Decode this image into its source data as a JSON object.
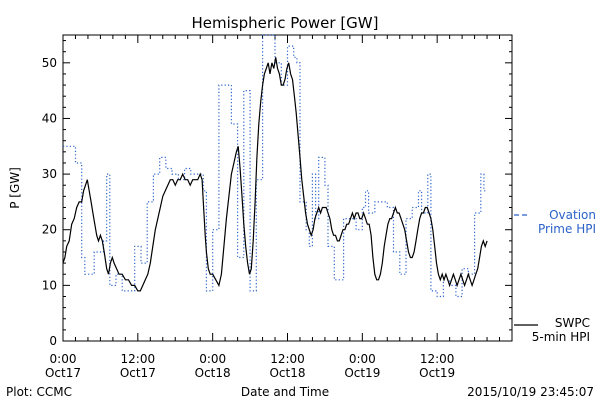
{
  "chart_data": {
    "type": "line",
    "title": "Hemispheric Power [GW]",
    "ylabel": "P [GW]",
    "xlabel": "Date and Time",
    "ylim": [
      0,
      55
    ],
    "yticks": [
      0,
      10,
      20,
      30,
      40,
      50
    ],
    "xlim_hours": [
      0,
      72
    ],
    "xticks": [
      {
        "hour": 0,
        "line1": "0:00",
        "line2": "Oct17"
      },
      {
        "hour": 12,
        "line1": "12:00",
        "line2": "Oct17"
      },
      {
        "hour": 24,
        "line1": "0:00",
        "line2": "Oct18"
      },
      {
        "hour": 36,
        "line1": "12:00",
        "line2": "Oct18"
      },
      {
        "hour": 48,
        "line1": "0:00",
        "line2": "Oct19"
      },
      {
        "hour": 60,
        "line1": "12:00",
        "line2": "Oct19"
      }
    ],
    "grid": false,
    "series": [
      {
        "name": "SWPC 5-min HPI",
        "legend_line1": "SWPC",
        "legend_line2": "5-min HPI",
        "color": "#000000",
        "style": "solid",
        "points": [
          [
            0,
            14
          ],
          [
            0.3,
            15
          ],
          [
            0.6,
            17
          ],
          [
            1,
            18
          ],
          [
            1.4,
            21
          ],
          [
            1.8,
            22
          ],
          [
            2.2,
            24
          ],
          [
            2.6,
            25
          ],
          [
            3,
            25
          ],
          [
            3.3,
            27
          ],
          [
            3.6,
            28
          ],
          [
            3.9,
            29
          ],
          [
            4.2,
            27
          ],
          [
            4.5,
            25
          ],
          [
            4.8,
            23
          ],
          [
            5.1,
            21
          ],
          [
            5.4,
            19
          ],
          [
            5.7,
            18
          ],
          [
            6,
            19
          ],
          [
            6.3,
            18
          ],
          [
            6.6,
            16
          ],
          [
            7,
            13
          ],
          [
            7.3,
            12
          ],
          [
            7.6,
            14
          ],
          [
            7.9,
            15
          ],
          [
            8.2,
            14
          ],
          [
            8.6,
            13
          ],
          [
            9,
            12
          ],
          [
            9.5,
            12
          ],
          [
            10,
            11
          ],
          [
            10.5,
            11
          ],
          [
            11,
            10
          ],
          [
            11.5,
            10
          ],
          [
            12,
            9
          ],
          [
            12.4,
            9
          ],
          [
            12.8,
            10
          ],
          [
            13.2,
            11
          ],
          [
            13.6,
            12
          ],
          [
            14,
            14
          ],
          [
            14.4,
            17
          ],
          [
            14.8,
            20
          ],
          [
            15.2,
            22
          ],
          [
            15.6,
            24
          ],
          [
            16,
            26
          ],
          [
            16.4,
            27
          ],
          [
            16.8,
            28
          ],
          [
            17.2,
            29
          ],
          [
            17.6,
            29
          ],
          [
            18,
            28
          ],
          [
            18.4,
            29
          ],
          [
            18.8,
            29
          ],
          [
            19.2,
            30
          ],
          [
            19.6,
            29
          ],
          [
            20,
            29
          ],
          [
            20.4,
            28
          ],
          [
            20.8,
            29
          ],
          [
            21.2,
            29
          ],
          [
            21.6,
            29
          ],
          [
            22,
            30
          ],
          [
            22.3,
            29
          ],
          [
            22.5,
            25
          ],
          [
            22.8,
            19
          ],
          [
            23,
            16
          ],
          [
            23.3,
            13
          ],
          [
            23.6,
            12
          ],
          [
            24,
            12
          ],
          [
            24.5,
            11
          ],
          [
            25,
            10
          ],
          [
            25.4,
            12
          ],
          [
            25.8,
            17
          ],
          [
            26.2,
            22
          ],
          [
            26.6,
            26
          ],
          [
            27,
            30
          ],
          [
            27.4,
            32
          ],
          [
            27.8,
            34
          ],
          [
            28.1,
            35
          ],
          [
            28.4,
            31
          ],
          [
            28.7,
            26
          ],
          [
            29,
            21
          ],
          [
            29.3,
            17
          ],
          [
            29.6,
            14
          ],
          [
            29.9,
            12
          ],
          [
            30.2,
            13
          ],
          [
            30.5,
            18
          ],
          [
            30.8,
            25
          ],
          [
            31.1,
            33
          ],
          [
            31.4,
            39
          ],
          [
            31.7,
            43
          ],
          [
            32,
            46
          ],
          [
            32.3,
            48
          ],
          [
            32.6,
            49
          ],
          [
            32.9,
            50
          ],
          [
            33.2,
            48
          ],
          [
            33.5,
            50
          ],
          [
            33.8,
            49
          ],
          [
            34.1,
            51
          ],
          [
            34.4,
            49
          ],
          [
            34.7,
            48
          ],
          [
            35,
            46
          ],
          [
            35.3,
            46
          ],
          [
            35.6,
            47
          ],
          [
            35.9,
            49
          ],
          [
            36.2,
            50
          ],
          [
            36.5,
            48
          ],
          [
            36.8,
            47
          ],
          [
            37.1,
            44
          ],
          [
            37.4,
            41
          ],
          [
            37.7,
            37
          ],
          [
            38,
            33
          ],
          [
            38.3,
            29
          ],
          [
            38.6,
            26
          ],
          [
            38.9,
            23
          ],
          [
            39.2,
            21
          ],
          [
            39.5,
            20
          ],
          [
            39.8,
            19
          ],
          [
            40.1,
            20
          ],
          [
            40.4,
            22
          ],
          [
            40.7,
            23
          ],
          [
            41,
            24
          ],
          [
            41.3,
            23
          ],
          [
            41.6,
            24
          ],
          [
            41.9,
            24
          ],
          [
            42.2,
            24
          ],
          [
            42.5,
            23
          ],
          [
            42.8,
            22
          ],
          [
            43.1,
            20
          ],
          [
            43.4,
            19
          ],
          [
            43.7,
            19
          ],
          [
            44,
            18
          ],
          [
            44.3,
            18
          ],
          [
            44.6,
            19
          ],
          [
            44.9,
            20
          ],
          [
            45.2,
            20
          ],
          [
            45.5,
            21
          ],
          [
            45.8,
            21
          ],
          [
            46.1,
            22
          ],
          [
            46.4,
            23
          ],
          [
            46.7,
            22
          ],
          [
            47,
            23
          ],
          [
            47.3,
            23
          ],
          [
            47.6,
            22
          ],
          [
            47.9,
            22
          ],
          [
            48.2,
            23
          ],
          [
            48.5,
            22
          ],
          [
            48.8,
            21
          ],
          [
            49.1,
            21
          ],
          [
            49.4,
            19
          ],
          [
            49.7,
            15
          ],
          [
            50,
            12
          ],
          [
            50.3,
            11
          ],
          [
            50.6,
            11
          ],
          [
            50.9,
            12
          ],
          [
            51.2,
            14
          ],
          [
            51.5,
            17
          ],
          [
            51.8,
            19
          ],
          [
            52.1,
            21
          ],
          [
            52.4,
            22
          ],
          [
            52.7,
            22
          ],
          [
            53,
            23
          ],
          [
            53.3,
            24
          ],
          [
            53.6,
            23
          ],
          [
            53.9,
            23
          ],
          [
            54.2,
            22
          ],
          [
            54.5,
            21
          ],
          [
            54.8,
            20
          ],
          [
            55.1,
            18
          ],
          [
            55.4,
            16
          ],
          [
            55.7,
            15
          ],
          [
            56,
            15
          ],
          [
            56.3,
            16
          ],
          [
            56.6,
            18
          ],
          [
            56.9,
            20
          ],
          [
            57.2,
            22
          ],
          [
            57.5,
            23
          ],
          [
            57.8,
            23
          ],
          [
            58.1,
            24
          ],
          [
            58.4,
            24
          ],
          [
            58.7,
            23
          ],
          [
            59,
            22
          ],
          [
            59.3,
            20
          ],
          [
            59.6,
            17
          ],
          [
            59.9,
            14
          ],
          [
            60.2,
            12
          ],
          [
            60.5,
            11
          ],
          [
            60.8,
            12
          ],
          [
            61.1,
            11
          ],
          [
            61.4,
            12
          ],
          [
            61.7,
            11
          ],
          [
            62,
            10
          ],
          [
            62.3,
            11
          ],
          [
            62.6,
            12
          ],
          [
            62.9,
            11
          ],
          [
            63.2,
            10
          ],
          [
            63.5,
            11
          ],
          [
            63.8,
            12
          ],
          [
            64.1,
            11
          ],
          [
            64.4,
            10
          ],
          [
            64.7,
            11
          ],
          [
            65,
            12
          ],
          [
            65.3,
            11
          ],
          [
            65.6,
            10
          ],
          [
            65.9,
            11
          ],
          [
            66.2,
            12
          ],
          [
            66.5,
            13
          ],
          [
            66.8,
            15
          ],
          [
            67.1,
            17
          ],
          [
            67.4,
            18
          ],
          [
            67.7,
            17
          ],
          [
            68,
            18
          ]
        ]
      },
      {
        "name": "Ovation Prime HPI",
        "legend_line1": "Ovation",
        "legend_line2": "Prime HPI",
        "color": "#2a62c8",
        "style": "dotted",
        "points": [
          [
            0,
            35
          ],
          [
            2,
            32
          ],
          [
            3,
            15
          ],
          [
            3.5,
            12
          ],
          [
            5,
            16
          ],
          [
            6.5,
            18
          ],
          [
            7,
            30
          ],
          [
            7.5,
            10
          ],
          [
            8.5,
            12
          ],
          [
            9.5,
            9
          ],
          [
            11.5,
            17
          ],
          [
            12.5,
            14
          ],
          [
            13.5,
            25
          ],
          [
            14.5,
            30
          ],
          [
            15.5,
            33
          ],
          [
            16.5,
            31
          ],
          [
            17.5,
            30
          ],
          [
            18.5,
            29
          ],
          [
            19.5,
            31
          ],
          [
            20.5,
            30
          ],
          [
            21.5,
            30
          ],
          [
            22.5,
            27
          ],
          [
            23,
            9
          ],
          [
            24,
            20
          ],
          [
            25,
            46
          ],
          [
            27,
            39
          ],
          [
            28,
            15
          ],
          [
            29,
            45
          ],
          [
            30,
            9
          ],
          [
            31,
            29
          ],
          [
            32,
            55
          ],
          [
            34,
            50
          ],
          [
            35,
            46
          ],
          [
            36,
            53
          ],
          [
            37,
            51
          ],
          [
            37.5,
            50
          ],
          [
            38,
            25
          ],
          [
            39,
            20
          ],
          [
            39.5,
            17
          ],
          [
            40,
            30
          ],
          [
            40.5,
            22
          ],
          [
            41,
            33
          ],
          [
            42,
            28
          ],
          [
            42.5,
            17
          ],
          [
            43.5,
            11
          ],
          [
            45,
            22
          ],
          [
            47,
            20
          ],
          [
            48,
            24
          ],
          [
            48.5,
            27
          ],
          [
            49,
            23
          ],
          [
            50,
            25
          ],
          [
            51,
            25
          ],
          [
            52,
            24
          ],
          [
            53,
            16
          ],
          [
            54,
            12
          ],
          [
            55,
            22
          ],
          [
            56,
            24
          ],
          [
            57,
            27
          ],
          [
            57.5,
            23
          ],
          [
            58.5,
            30
          ],
          [
            59,
            9
          ],
          [
            60,
            8
          ],
          [
            61,
            11
          ],
          [
            62,
            10
          ],
          [
            63,
            8
          ],
          [
            64,
            13
          ],
          [
            65,
            12
          ],
          [
            66,
            23
          ],
          [
            67,
            30
          ],
          [
            67.5,
            27
          ],
          [
            68,
            27
          ]
        ]
      }
    ]
  },
  "footer": {
    "left": "Plot: CCMC",
    "center": "Date and Time",
    "right": "2015/10/19 23:45:07"
  }
}
